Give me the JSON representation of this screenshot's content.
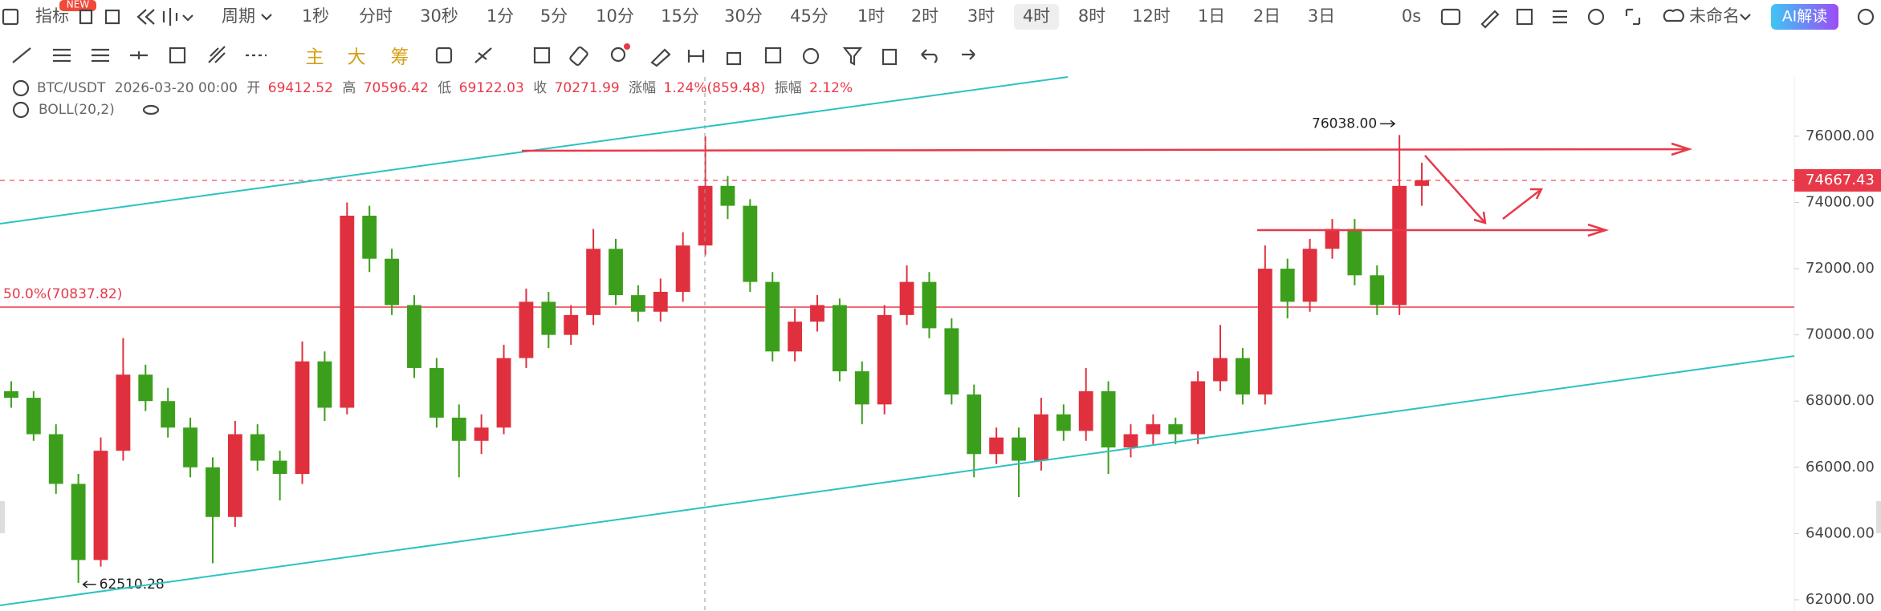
{
  "toolbar": {
    "indicator": "指标",
    "new_badge": "NEW",
    "period_menu": "周期",
    "periods": [
      "1秒",
      "分时",
      "30秒",
      "1分",
      "5分",
      "10分",
      "15分",
      "30分",
      "45分",
      "1时",
      "2时",
      "3时",
      "4时",
      "8时",
      "12时",
      "1日",
      "2日",
      "3日"
    ],
    "selected_period": "4时",
    "delay": "0s",
    "layout_name": "未命名",
    "ai_button": "AI解读",
    "chart_types": [
      "主",
      "大",
      "筹"
    ]
  },
  "info": {
    "symbol": "BTC/USDT",
    "time": "2026-03-20 00:00",
    "open_label": "开",
    "open": "69412.52",
    "high_label": "高",
    "high": "70596.42",
    "low_label": "低",
    "low": "69122.03",
    "close_label": "收",
    "close": "70271.99",
    "change_label": "涨幅",
    "change": "1.24%(859.48)",
    "amplitude_label": "振幅",
    "amplitude": "2.12%",
    "indicator": "BOLL(20,2)"
  },
  "chart_data": {
    "type": "candlestick",
    "up_color": "#e0303e",
    "down_color": "#3c9f1c",
    "candles": [
      [
        68300,
        68600,
        67800,
        68100
      ],
      [
        68100,
        68300,
        66800,
        67000
      ],
      [
        67000,
        67300,
        65200,
        65500
      ],
      [
        65500,
        65800,
        62510.28,
        63200
      ],
      [
        63200,
        66900,
        63000,
        66500
      ],
      [
        66500,
        69900,
        66200,
        68800
      ],
      [
        68800,
        69100,
        67700,
        68000
      ],
      [
        68000,
        68400,
        66900,
        67200
      ],
      [
        67200,
        67500,
        65700,
        66000
      ],
      [
        66000,
        66300,
        63100,
        64500
      ],
      [
        64500,
        67400,
        64200,
        67000
      ],
      [
        67000,
        67300,
        65900,
        66200
      ],
      [
        66200,
        66500,
        65000,
        65800
      ],
      [
        65800,
        69800,
        65500,
        69200
      ],
      [
        69200,
        69500,
        67400,
        67800
      ],
      [
        67800,
        74000,
        67600,
        73600
      ],
      [
        73600,
        73900,
        71900,
        72300
      ],
      [
        72300,
        72600,
        70600,
        70900
      ],
      [
        70900,
        71200,
        68700,
        69000
      ],
      [
        69000,
        69300,
        67200,
        67500
      ],
      [
        67500,
        67900,
        65700,
        66800
      ],
      [
        66800,
        67600,
        66400,
        67200
      ],
      [
        67200,
        69700,
        67000,
        69300
      ],
      [
        69300,
        71400,
        69000,
        71000
      ],
      [
        71000,
        71300,
        69600,
        70000
      ],
      [
        70000,
        70900,
        69700,
        70600
      ],
      [
        70600,
        73200,
        70300,
        72600
      ],
      [
        72600,
        72900,
        70900,
        71200
      ],
      [
        71200,
        71500,
        70400,
        70700
      ],
      [
        70700,
        71700,
        70400,
        71300
      ],
      [
        71300,
        73100,
        71000,
        72700
      ],
      [
        72700,
        76000,
        72400,
        74500
      ],
      [
        74500,
        74800,
        73500,
        73900
      ],
      [
        73900,
        74100,
        71300,
        71600
      ],
      [
        71600,
        71900,
        69200,
        69500
      ],
      [
        69500,
        70800,
        69200,
        70400
      ],
      [
        70400,
        71200,
        70100,
        70900
      ],
      [
        70900,
        71100,
        68600,
        68900
      ],
      [
        68900,
        69200,
        67300,
        67900
      ],
      [
        67900,
        70900,
        67600,
        70600
      ],
      [
        70600,
        72100,
        70300,
        71600
      ],
      [
        71600,
        71900,
        69900,
        70200
      ],
      [
        70200,
        70500,
        67900,
        68200
      ],
      [
        68200,
        68500,
        65700,
        66400
      ],
      [
        66400,
        67200,
        66100,
        66900
      ],
      [
        66900,
        67200,
        65100,
        66200
      ],
      [
        66200,
        68100,
        65900,
        67600
      ],
      [
        67600,
        67900,
        66800,
        67100
      ],
      [
        67100,
        69000,
        66800,
        68300
      ],
      [
        68300,
        68600,
        65800,
        66600
      ],
      [
        66600,
        67300,
        66300,
        67000
      ],
      [
        67000,
        67600,
        66700,
        67300
      ],
      [
        67300,
        67500,
        66700,
        67000
      ],
      [
        67000,
        68900,
        66700,
        68600
      ],
      [
        68600,
        70300,
        68300,
        69300
      ],
      [
        69300,
        69600,
        67900,
        68200
      ],
      [
        68200,
        72700,
        67900,
        72000
      ],
      [
        72000,
        72300,
        70500,
        71000
      ],
      [
        71000,
        72900,
        70700,
        72600
      ],
      [
        72600,
        73500,
        72300,
        73200
      ],
      [
        73200,
        73500,
        71500,
        71800
      ],
      [
        71800,
        72100,
        70600,
        70900
      ],
      [
        70900,
        76038,
        70600,
        74500
      ],
      [
        74500,
        75200,
        73900,
        74667.43
      ]
    ],
    "ylim": [
      61660,
      77790
    ],
    "yticks": [
      {
        "value": 62000,
        "label": "62000.00"
      },
      {
        "value": 64000,
        "label": "64000.00"
      },
      {
        "value": 66000,
        "label": "66000.00"
      },
      {
        "value": 68000,
        "label": "68000.00"
      },
      {
        "value": 70000,
        "label": "70000.00"
      },
      {
        "value": 72000,
        "label": "72000.00"
      },
      {
        "value": 74000,
        "label": "74000.00"
      },
      {
        "value": 76000,
        "label": "76000.00"
      }
    ],
    "last_price": 74667.43,
    "fib_level": {
      "value": 70837.82,
      "label": "50.0%(70837.82)"
    },
    "max_label": {
      "value": 76038,
      "label": "76038.00"
    },
    "min_label": {
      "value": 62510.28,
      "label": "62510.28"
    }
  }
}
